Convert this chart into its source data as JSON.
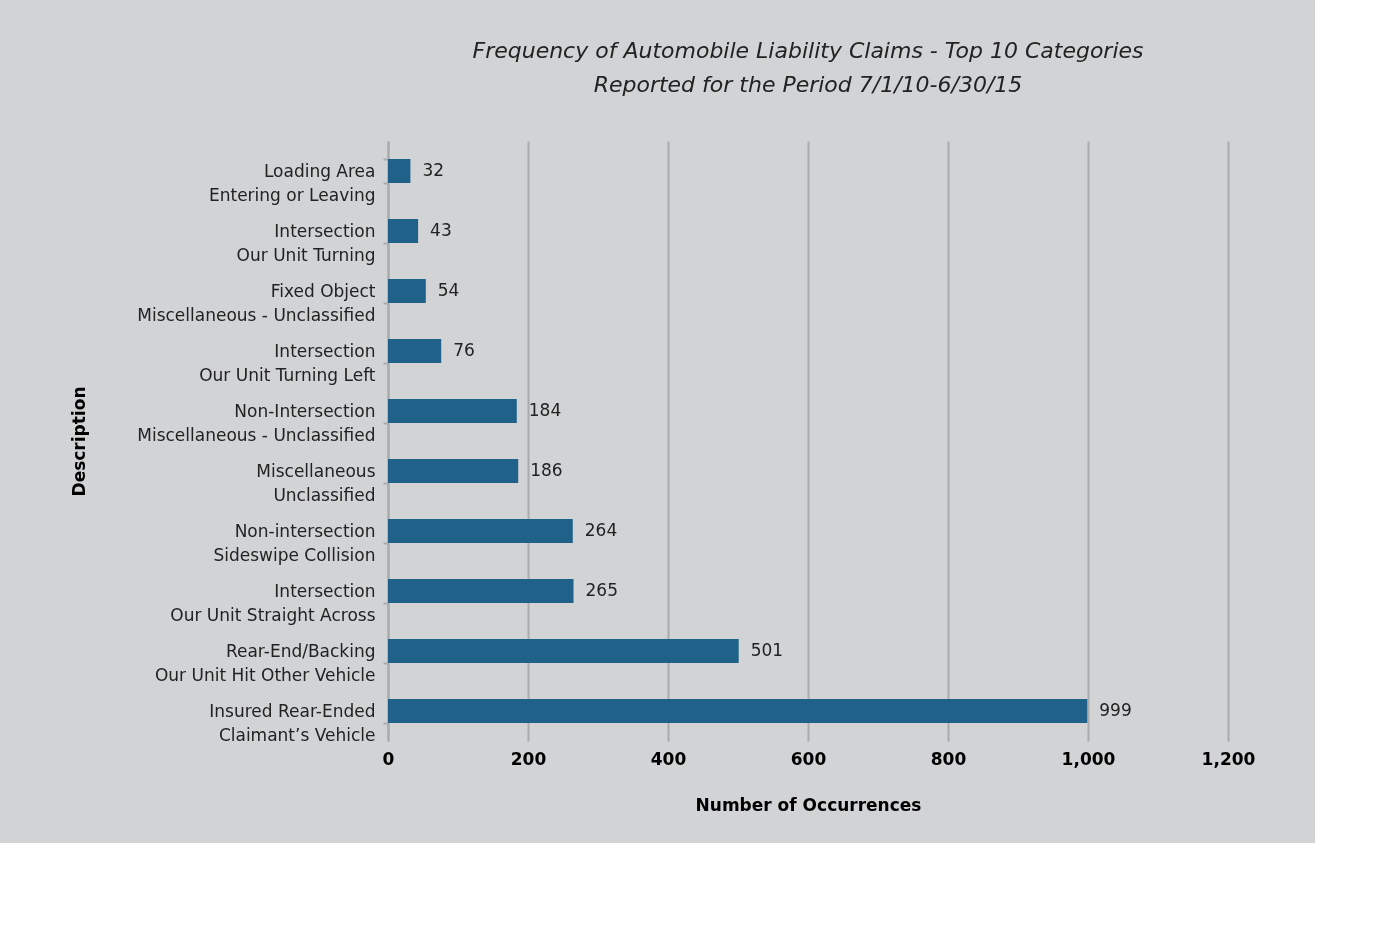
{
  "chart_data": {
    "type": "bar",
    "orientation": "horizontal",
    "title": "Frequency of Automobile Liability Claims - Top 10 Categories",
    "subtitle": "Reported for the Period 7/1/10-6/30/15",
    "xlabel": "Number of Occurrences",
    "ylabel": "Description",
    "categories": [
      "Loading Area\nEntering or Leaving",
      "Intersection\nOur Unit Turning",
      "Fixed Object\nMiscellaneous - Unclassified",
      "Intersection\nOur Unit Turning Left",
      "Non-Intersection\nMiscellaneous - Unclassified",
      "Miscellaneous\nUnclassified",
      "Non-intersection\nSideswipe Collision",
      "Intersection\nOur Unit Straight Across",
      "Rear-End/Backing\nOur Unit Hit Other Vehicle",
      "Insured Rear-Ended\nClaimant’s Vehicle"
    ],
    "values": [
      32,
      43,
      54,
      76,
      184,
      186,
      264,
      265,
      501,
      999
    ],
    "color": "#1f6189",
    "xlim": [
      0,
      1200
    ],
    "xticks": [
      0,
      200,
      400,
      600,
      800,
      {
        "value": 1000,
        "label": "1,000"
      },
      {
        "value": 1200,
        "label": "1,200"
      }
    ],
    "grid": "x",
    "data_labels": true
  }
}
